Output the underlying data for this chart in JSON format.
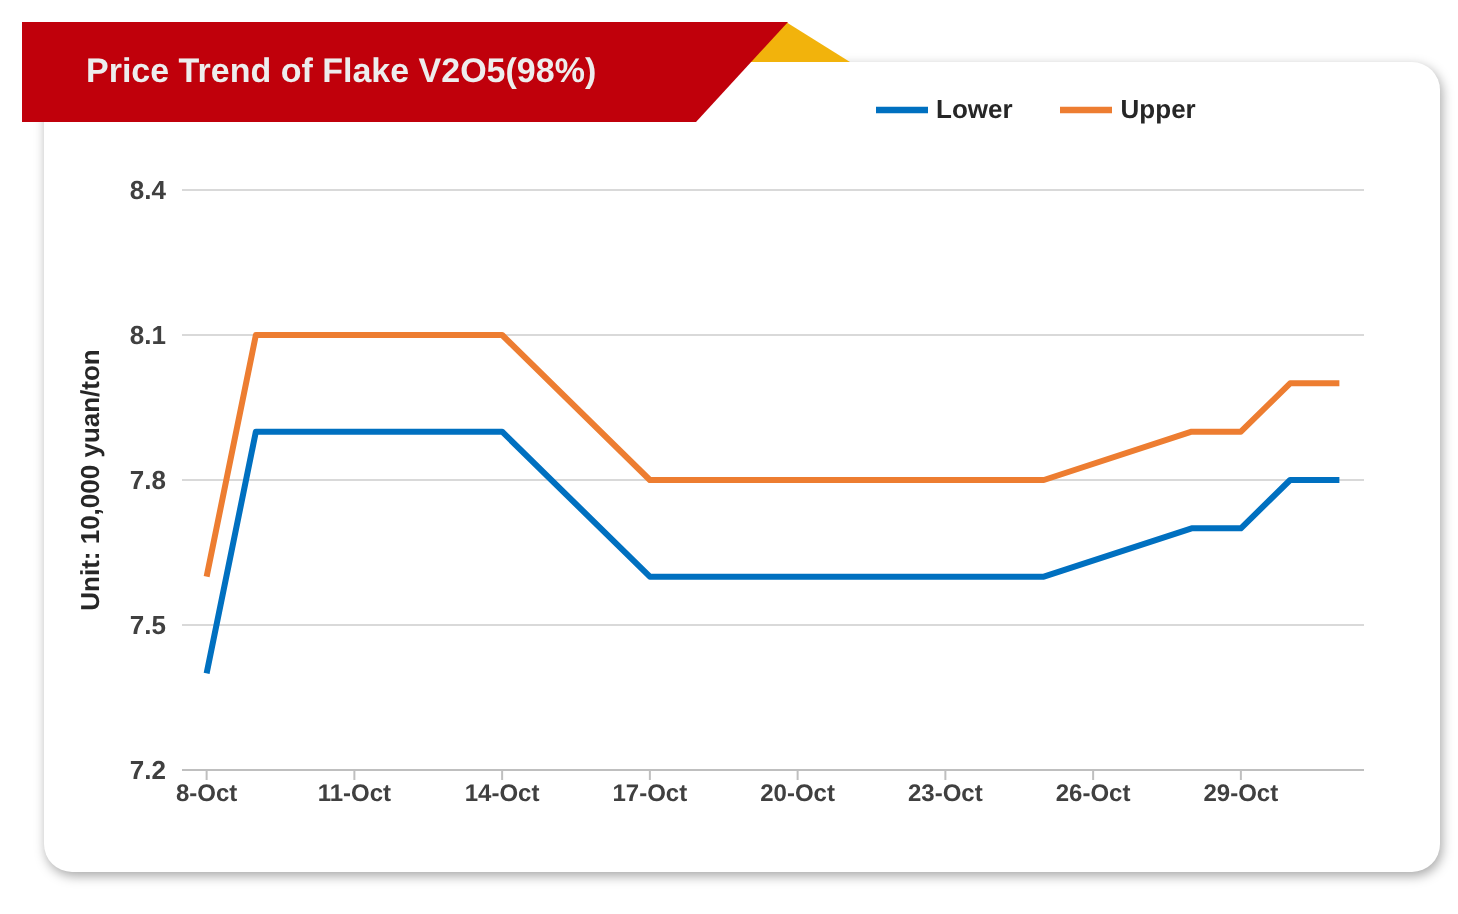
{
  "chart_data": {
    "type": "line",
    "title": "Price Trend of Flake V2O5(98%)",
    "ylabel": "Unit: 10,000 yuan/ton",
    "x": [
      "--10-08",
      "--10-09",
      "--10-10",
      "--10-11",
      "--10-12",
      "--10-13",
      "--10-14",
      "--10-17",
      "--10-18",
      "--10-19",
      "--10-20",
      "--10-21",
      "--10-22",
      "--10-23",
      "--10-24",
      "--10-25",
      "--10-28",
      "--10-29",
      "--10-30",
      "--10-31"
    ],
    "series": [
      {
        "name": "Lower",
        "color": "#0070c0",
        "values": [
          7.4,
          7.9,
          7.9,
          7.9,
          7.9,
          7.9,
          7.9,
          7.6,
          7.6,
          7.6,
          7.6,
          7.6,
          7.6,
          7.6,
          7.6,
          7.6,
          7.7,
          7.7,
          7.8,
          7.8
        ]
      },
      {
        "name": "Upper",
        "color": "#ed7d31",
        "values": [
          7.6,
          8.1,
          8.1,
          8.1,
          8.1,
          8.1,
          8.1,
          7.8,
          7.8,
          7.8,
          7.8,
          7.8,
          7.8,
          7.8,
          7.8,
          7.8,
          7.9,
          7.9,
          8.0,
          8.0
        ]
      }
    ],
    "xlim": [
      "--10-07T12:00",
      "--10-31T12:00"
    ],
    "xticks": [
      {
        "value": "--10-08",
        "label": "8-Oct"
      },
      {
        "value": "--10-11",
        "label": "11-Oct"
      },
      {
        "value": "--10-14",
        "label": "14-Oct"
      },
      {
        "value": "--10-17",
        "label": "17-Oct"
      },
      {
        "value": "--10-20",
        "label": "20-Oct"
      },
      {
        "value": "--10-23",
        "label": "23-Oct"
      },
      {
        "value": "--10-26",
        "label": "26-Oct"
      },
      {
        "value": "--10-29",
        "label": "29-Oct"
      }
    ],
    "ylim": [
      7.2,
      8.4
    ],
    "yticks": [
      7.2,
      7.5,
      7.8,
      8.1,
      8.4
    ],
    "grid": "y",
    "legend": "top right"
  }
}
